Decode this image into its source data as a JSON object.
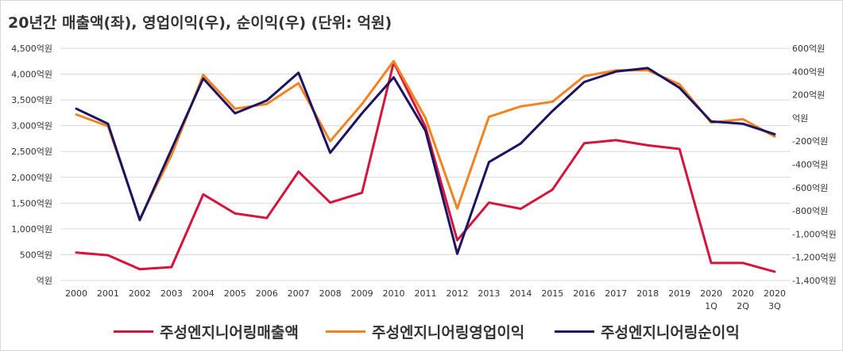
{
  "chart_data": {
    "type": "line",
    "title": "20년간 매출액(좌), 영업이익(우), 순이익(우) (단위: 억원)",
    "categories": [
      "2000",
      "2001",
      "2002",
      "2003",
      "2004",
      "2005",
      "2006",
      "2007",
      "2008",
      "2009",
      "2010",
      "2011",
      "2012",
      "2013",
      "2014",
      "2015",
      "2016",
      "2017",
      "2018",
      "2019",
      "2020\n1Q",
      "2020\n2Q",
      "2020\n3Q"
    ],
    "left_axis": {
      "ylim": [
        0,
        4500
      ],
      "ticks": [
        0,
        500,
        1000,
        1500,
        2000,
        2500,
        3000,
        3500,
        4000,
        4500
      ],
      "tick_labels": [
        "억원",
        "500억원",
        "1,000억원",
        "1,500억원",
        "2,000억원",
        "2,500억원",
        "3,000억원",
        "3,500억원",
        "4,000억원",
        "4,500억원"
      ]
    },
    "right_axis": {
      "ylim": [
        -1400,
        600
      ],
      "ticks": [
        -1400,
        -1200,
        -1000,
        -800,
        -600,
        -400,
        -200,
        0,
        200,
        400,
        600
      ],
      "tick_labels": [
        "-1,400억원",
        "-1,200억원",
        "-1,000억원",
        "-800억원",
        "-600억원",
        "-400억원",
        "-200억원",
        "억원",
        "200억원",
        "400억원",
        "600억원"
      ]
    },
    "grid": true,
    "legend_position": "bottom",
    "series": [
      {
        "name": "주성엔지니어링매출액",
        "axis": "left",
        "color": "#d6143c",
        "values": [
          540,
          490,
          220,
          260,
          1670,
          1300,
          1210,
          2110,
          1510,
          1700,
          4230,
          2980,
          780,
          1510,
          1390,
          1760,
          2660,
          2720,
          2620,
          2550,
          340,
          340,
          170
        ]
      },
      {
        "name": "주성엔지니어링영업이익",
        "axis": "right",
        "color": "#f58220",
        "values": [
          30,
          -70,
          -870,
          -320,
          370,
          80,
          120,
          300,
          -200,
          120,
          490,
          0,
          -780,
          10,
          100,
          140,
          360,
          410,
          410,
          290,
          -40,
          -10,
          -160
        ]
      },
      {
        "name": "주성엔지니어링순이익",
        "axis": "right",
        "color": "#1b1464",
        "values": [
          80,
          -50,
          -880,
          -270,
          340,
          40,
          150,
          390,
          -300,
          40,
          350,
          -110,
          -1170,
          -380,
          -220,
          60,
          310,
          400,
          430,
          260,
          -30,
          -50,
          -140
        ]
      }
    ]
  }
}
